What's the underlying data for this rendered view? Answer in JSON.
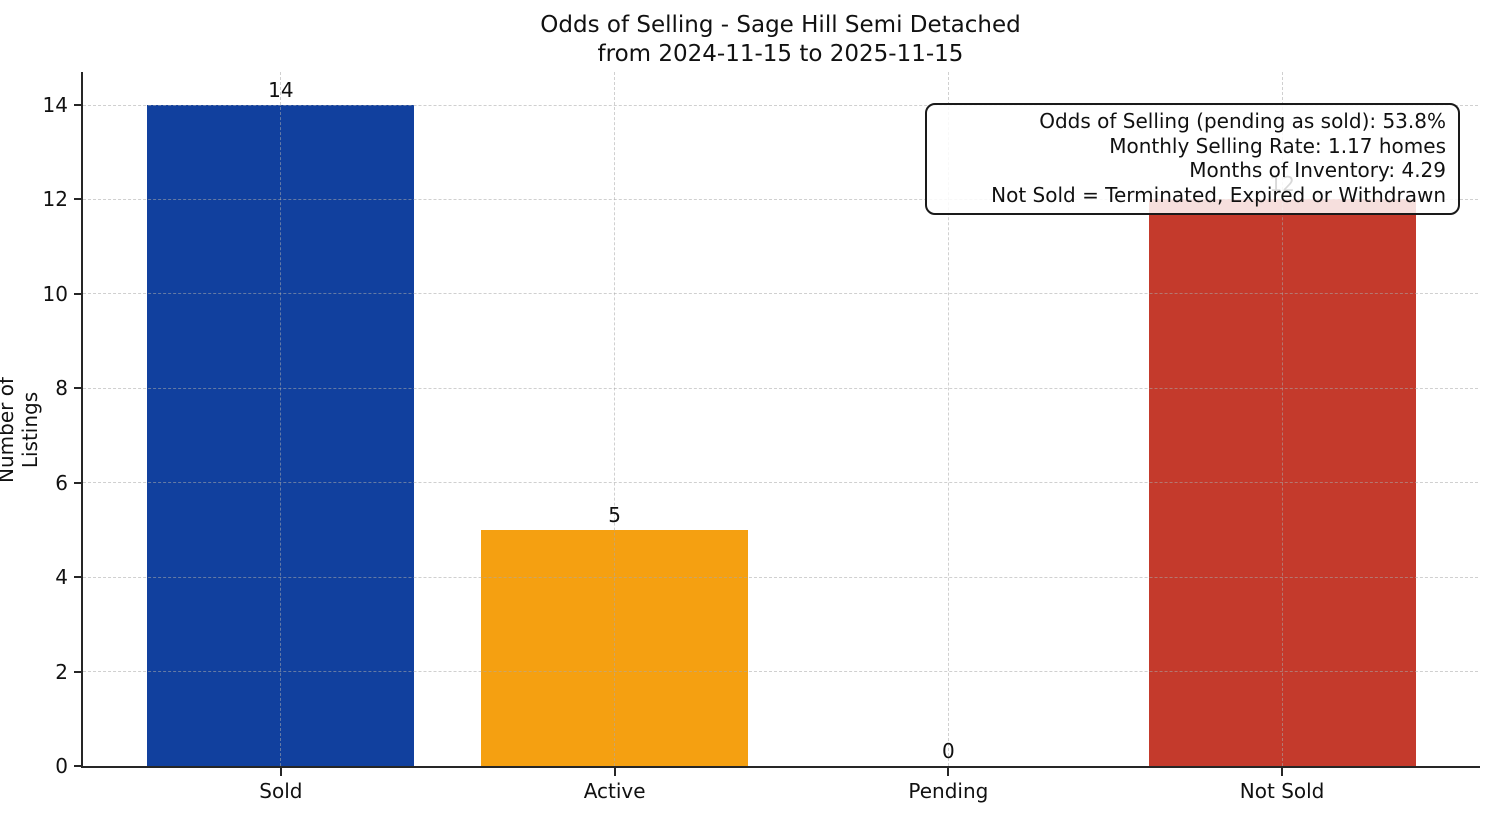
{
  "chart_data": {
    "type": "bar",
    "title": "Odds of Selling - Sage Hill Semi Detached",
    "subtitle": "from 2024-11-15 to 2025-11-15",
    "categories": [
      "Sold",
      "Active",
      "Pending",
      "Not Sold"
    ],
    "values": [
      14,
      5,
      0,
      12
    ],
    "value_labels": [
      "14",
      "5",
      "0",
      "12"
    ],
    "bar_colors": [
      "#11409e",
      "#f5a011",
      null,
      "#c43a2c"
    ],
    "xlabel": "",
    "ylabel": "Number of Listings",
    "ylim": [
      0,
      14.7
    ],
    "yticks": [
      0,
      2,
      4,
      6,
      8,
      10,
      12,
      14
    ],
    "grid": true,
    "legend_position": "none",
    "annotation": {
      "lines": [
        "Odds of Selling (pending as sold): 53.8%",
        "Monthly Selling Rate: 1.17 homes",
        "Months of Inventory: 4.29",
        "Not Sold = Terminated, Expired or Withdrawn"
      ]
    },
    "colors": {
      "sold_bar": "#11409e",
      "active_bar": "#f5a011",
      "not_sold_bar": "#c43a2c",
      "axis": "#262626",
      "grid": "#aaaaaa",
      "text": "#111111"
    }
  }
}
